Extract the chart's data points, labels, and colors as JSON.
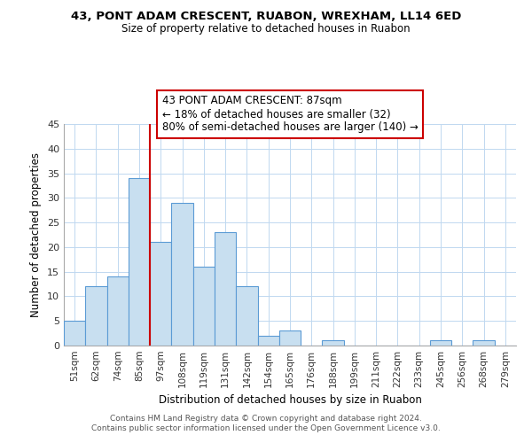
{
  "title": "43, PONT ADAM CRESCENT, RUABON, WREXHAM, LL14 6ED",
  "subtitle": "Size of property relative to detached houses in Ruabon",
  "xlabel": "Distribution of detached houses by size in Ruabon",
  "ylabel": "Number of detached properties",
  "footer_line1": "Contains HM Land Registry data © Crown copyright and database right 2024.",
  "footer_line2": "Contains public sector information licensed under the Open Government Licence v3.0.",
  "categories": [
    "51sqm",
    "62sqm",
    "74sqm",
    "85sqm",
    "97sqm",
    "108sqm",
    "119sqm",
    "131sqm",
    "142sqm",
    "154sqm",
    "165sqm",
    "176sqm",
    "188sqm",
    "199sqm",
    "211sqm",
    "222sqm",
    "233sqm",
    "245sqm",
    "256sqm",
    "268sqm",
    "279sqm"
  ],
  "values": [
    5,
    12,
    14,
    34,
    21,
    29,
    16,
    23,
    12,
    2,
    3,
    0,
    1,
    0,
    0,
    0,
    0,
    1,
    0,
    1,
    0
  ],
  "bar_color": "#c8dff0",
  "bar_edge_color": "#5b9bd5",
  "vline_x": 3.5,
  "vline_color": "#cc0000",
  "annotation_title": "43 PONT ADAM CRESCENT: 87sqm",
  "annotation_line1": "← 18% of detached houses are smaller (32)",
  "annotation_line2": "80% of semi-detached houses are larger (140) →",
  "annotation_box_color": "#ffffff",
  "annotation_box_edge": "#cc0000",
  "ylim": [
    0,
    45
  ],
  "yticks": [
    0,
    5,
    10,
    15,
    20,
    25,
    30,
    35,
    40,
    45
  ]
}
